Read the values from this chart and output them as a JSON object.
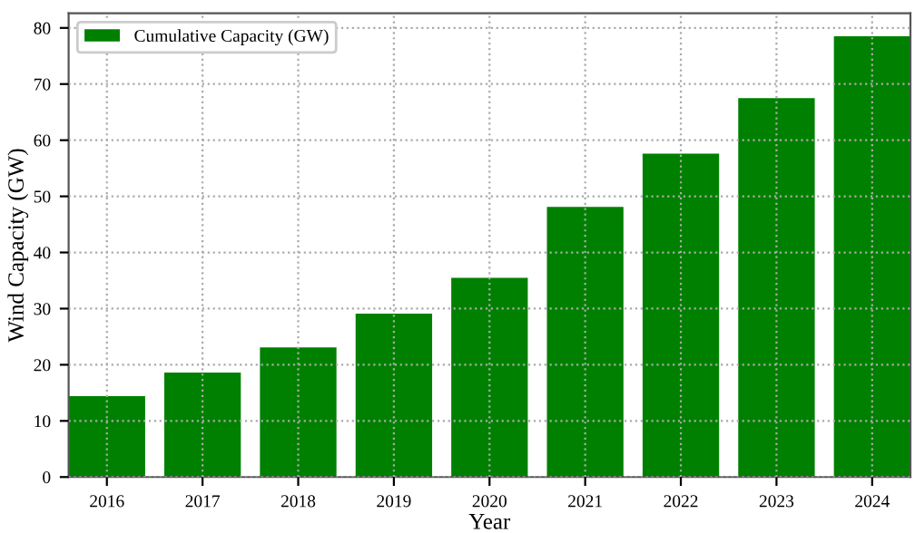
{
  "chart_data": {
    "type": "bar",
    "xlabel": "Year",
    "ylabel": "Wind Capacity (GW)",
    "categories": [
      "2016",
      "2017",
      "2018",
      "2019",
      "2020",
      "2021",
      "2022",
      "2023",
      "2024"
    ],
    "series": [
      {
        "name": "Cumulative Capacity (GW)",
        "color": "#008000",
        "values": [
          14.4,
          18.6,
          23.1,
          29.1,
          35.5,
          48.1,
          57.6,
          67.5,
          78.5
        ]
      }
    ],
    "ylim": [
      0,
      82.6
    ],
    "yticks": [
      0,
      10,
      20,
      30,
      40,
      50,
      60,
      70,
      80
    ],
    "grid": true,
    "legend": "upper left"
  }
}
